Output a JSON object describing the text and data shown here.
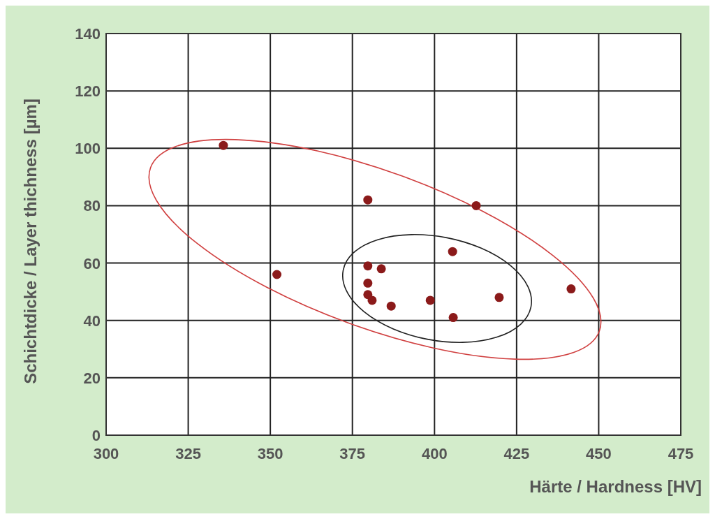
{
  "chart_data": {
    "type": "scatter",
    "xlabel": "Härte / Hardness [HV]",
    "ylabel": "Schichtdicke / Layer thichness [µm]",
    "x": [
      335.7,
      352,
      379.7,
      379.7,
      383.8,
      379.7,
      379.7,
      381,
      386.8,
      398.7,
      405.5,
      405.7,
      412.7,
      419.7,
      441.6
    ],
    "series": [
      {
        "color": "#8b1a1a",
        "values": [
          101,
          56,
          82,
          59,
          58,
          53,
          49,
          47,
          45,
          47,
          64,
          41,
          80,
          48,
          51
        ]
      }
    ],
    "xlim": [
      300,
      475
    ],
    "xticks": [
      300,
      325,
      350,
      375,
      400,
      425,
      450,
      475
    ],
    "ylim": [
      0,
      140
    ],
    "yticks": [
      0,
      20,
      40,
      60,
      80,
      100,
      120,
      140
    ],
    "grid": true,
    "marker": "circle"
  }
}
